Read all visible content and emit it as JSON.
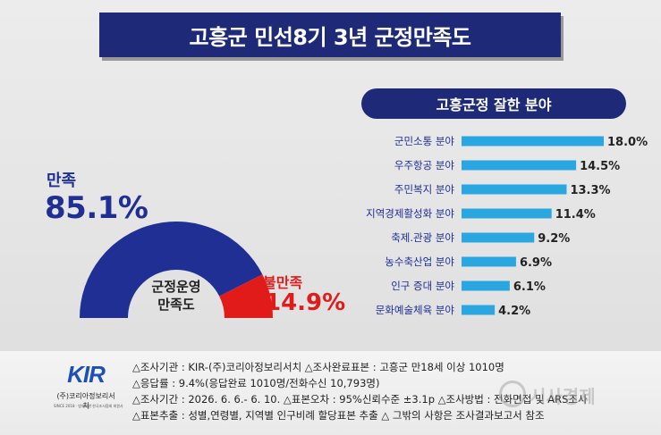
{
  "title": "고흥군 민선8기 3년 군정만족도",
  "gauge": {
    "center_line1": "군정운영",
    "center_line2": "만족도",
    "satisfied": {
      "label": "만족",
      "value_text": "85.1%",
      "value": 85.1,
      "color": "#1f2f93"
    },
    "dissatisfied": {
      "label": "불만족",
      "value_text": "14.9%",
      "value": 14.9,
      "color": "#e11a1a"
    }
  },
  "chart_data": {
    "type": "bar",
    "title": "고흥군정 잘한 분야",
    "categories": [
      "군민소통 분야",
      "우주항공 분야",
      "주민복지 분야",
      "지역경제활성화 분야",
      "축제.관광 분야",
      "농수축산업 분야",
      "인구 증대 분야",
      "문화예술체육 분야"
    ],
    "values": [
      18.0,
      14.5,
      13.3,
      11.4,
      9.2,
      6.9,
      6.1,
      4.2
    ],
    "value_labels": [
      "18.0%",
      "14.5%",
      "13.3%",
      "11.4%",
      "9.2%",
      "6.9%",
      "6.1%",
      "4.2%"
    ],
    "orientation": "horizontal",
    "bar_color": "#2aa7e0",
    "label_color": "#1f2f93",
    "xlim": [
      0,
      18
    ]
  },
  "logo": {
    "mark": "KIR",
    "org": "(주)코리아정보리서치",
    "small": "SINCE 2018 · 범위기관 한국조사협회 회원사"
  },
  "footer": {
    "line1": "△조사기관 : KIR-(주)코리아정보리서치 △조사완료표본 : 고흥군 만18세 이상 1010명",
    "line2": "△응답률 : 9.4%(응답완료 1010명/전화수신 10,793명)",
    "line3": "△조사기간 : 2026. 6. 6.- 6. 10. △표본오차 : 95%신뢰수준 ±3.1p △조사방법 : 전화면접 및 ARS조사",
    "line4": "△표본추출 : 성별,연령별, 지역별 인구비례 할당표본 추출 △ 그밖의 사항은 조사결과보고서 참조"
  },
  "watermark": "시사경제"
}
